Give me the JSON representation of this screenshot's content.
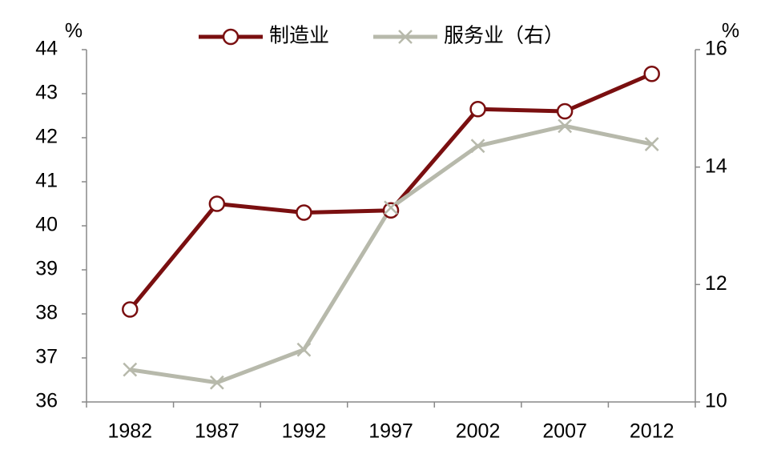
{
  "chart_data": {
    "type": "line",
    "ylabel": "%",
    "y2label": "%",
    "categories": [
      "1982",
      "1987",
      "1992",
      "1997",
      "2002",
      "2007",
      "2012"
    ],
    "series": [
      {
        "name": "制造业",
        "color": "#7a0f10",
        "marker": "circle",
        "values": [
          38.1,
          40.5,
          40.3,
          40.35,
          42.65,
          42.6,
          43.45
        ]
      },
      {
        "name": "服务业（右）",
        "color": "#b7b9ab",
        "marker": "x",
        "axis": "y2",
        "values": [
          10.55,
          10.33,
          10.89,
          13.31,
          14.36,
          14.7,
          14.39
        ]
      }
    ],
    "ylim": [
      36,
      44
    ],
    "yticks": [
      36,
      37,
      38,
      39,
      40,
      41,
      42,
      43,
      44
    ],
    "y2lim": [
      10,
      16
    ],
    "y2ticks": [
      10,
      12,
      14,
      16
    ],
    "grid": false,
    "legend": "top"
  }
}
